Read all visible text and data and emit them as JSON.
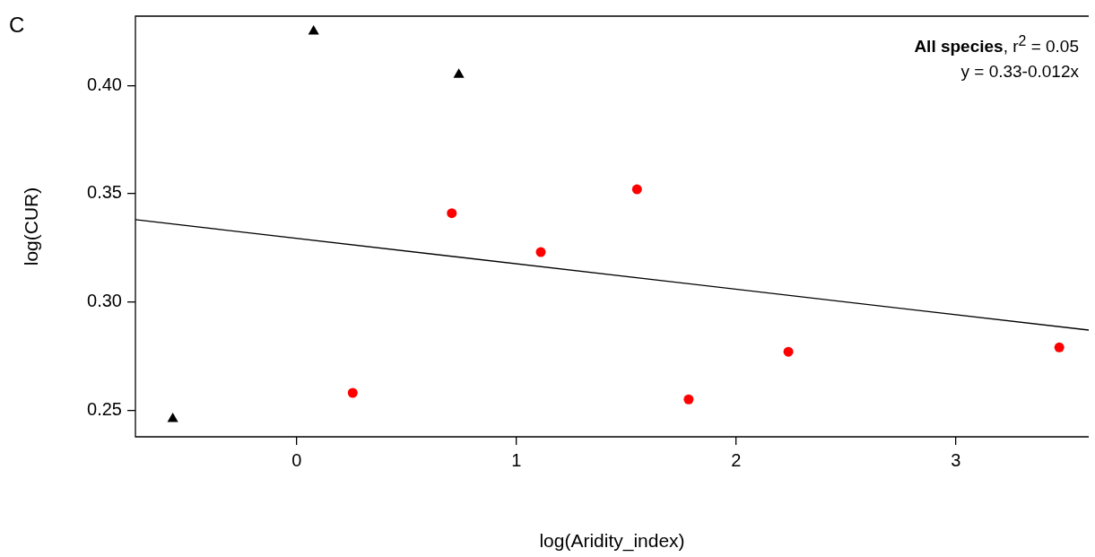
{
  "chart_data": {
    "type": "scatter",
    "title": "C",
    "xlabel": "log(Aridity_index)",
    "ylabel": "log(CUR)",
    "xlim": [
      -0.734,
      3.605
    ],
    "xticks": [
      0,
      1,
      2,
      3
    ],
    "ylim": [
      0.2377,
      0.432
    ],
    "yticks": [
      0.25,
      {
        "value": 0.3,
        "label": "0.30"
      },
      0.35,
      {
        "value": 0.4,
        "label": "0.40"
      }
    ],
    "grid": false,
    "legend": false,
    "annotations": [
      "All species, r$^{2}$ = 0.05",
      "y = 0.33-0.012x"
    ],
    "series": [
      {
        "type": "scatter",
        "color": "#000000",
        "marker": "triangle",
        "x": [
          -0.564,
          0.077,
          0.738
        ],
        "values": [
          0.246,
          0.425,
          0.405
        ]
      },
      {
        "type": "scatter",
        "color": "#ff0000",
        "marker": "circle",
        "x": [
          0.255,
          0.706,
          1.111,
          1.549,
          1.784,
          2.238,
          3.471
        ],
        "values": [
          0.258,
          0.341,
          0.323,
          0.352,
          0.255,
          0.277,
          0.279
        ]
      },
      {
        "type": "line",
        "color": "#000000",
        "marker": "none",
        "line_style": "solid",
        "x": [
          -0.734,
          3.605
        ],
        "values": [
          0.338,
          0.287
        ]
      }
    ]
  }
}
